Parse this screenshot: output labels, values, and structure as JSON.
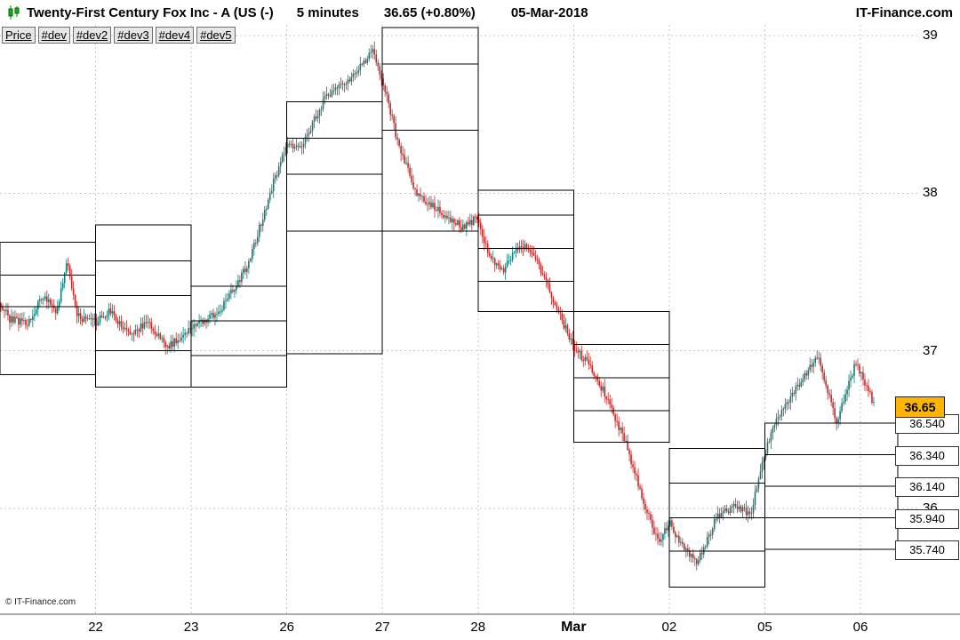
{
  "header": {
    "icon": "candlestick-icon",
    "title": "Twenty-First Century Fox Inc - A (US (-)",
    "timeframe": "5 minutes",
    "quote": "36.65 (+0.80%)",
    "date": "05-Mar-2018",
    "brand": "IT-Finance.com"
  },
  "toolbar": {
    "tabs": [
      "Price",
      "#dev",
      "#dev2",
      "#dev3",
      "#dev4",
      "#dev5"
    ]
  },
  "footer": {
    "copyright": "© IT-Finance.com"
  },
  "chart_data": {
    "type": "candlestick",
    "title": "Twenty-First Century Fox Inc - A, 5 minute candles with daily pivot/deviation step boxes",
    "x_labels": [
      {
        "text": "22",
        "bold": false
      },
      {
        "text": "23",
        "bold": false
      },
      {
        "text": "26",
        "bold": false
      },
      {
        "text": "27",
        "bold": false
      },
      {
        "text": "28",
        "bold": false
      },
      {
        "text": "Mar",
        "bold": true
      },
      {
        "text": "02",
        "bold": false
      },
      {
        "text": "05",
        "bold": false
      },
      {
        "text": "06",
        "bold": false
      }
    ],
    "y_ticks": [
      {
        "text": "39",
        "price": 39
      },
      {
        "text": "38",
        "price": 38
      },
      {
        "text": "37",
        "price": 37
      },
      {
        "text": "36",
        "price": 36
      }
    ],
    "y_range": [
      35.33,
      39.07
    ],
    "days_visible": 9.15,
    "grid": true,
    "current_price_label": {
      "text": "36.65",
      "price": 36.65
    },
    "pivot_labels": [
      {
        "text": "36.540",
        "price": 36.54
      },
      {
        "text": "36.340",
        "price": 36.34
      },
      {
        "text": "36.140",
        "price": 36.14
      },
      {
        "text": "35.940",
        "price": 35.94
      },
      {
        "text": "35.740",
        "price": 35.74
      }
    ],
    "pivot_boxes": [
      {
        "from": 0,
        "to": 1,
        "top": 37.69,
        "lines": [
          37.48,
          37.28
        ],
        "bottom": 36.85
      },
      {
        "from": 1,
        "to": 2,
        "top": 37.8,
        "lines": [
          37.57,
          37.35,
          37.0
        ],
        "bottom": 36.77
      },
      {
        "from": 2,
        "to": 3,
        "top": 37.41,
        "lines": [
          37.19,
          36.97
        ],
        "bottom": 36.77
      },
      {
        "from": 3,
        "to": 4,
        "top": 38.58,
        "lines": [
          38.35,
          38.12,
          37.76
        ],
        "bottom": 36.98
      },
      {
        "from": 4,
        "to": 5,
        "top": 39.05,
        "lines": [
          38.82,
          38.4
        ],
        "bottom": 37.76
      },
      {
        "from": 5,
        "to": 6,
        "top": 38.02,
        "lines": [
          37.86,
          37.65,
          37.44
        ],
        "bottom": 37.25
      },
      {
        "from": 6,
        "to": 7,
        "top": 37.25,
        "lines": [
          37.04,
          36.83,
          36.62
        ],
        "bottom": 36.42
      },
      {
        "from": 7,
        "to": 8,
        "top": 36.38,
        "lines": [
          36.16,
          35.94,
          35.73
        ],
        "bottom": 35.5
      },
      {
        "from": 8,
        "to": 9.4,
        "top": 36.54,
        "lines": [
          36.34,
          36.14,
          35.94
        ],
        "bottom": 35.74
      }
    ],
    "price_waypoints": [
      [
        0.0,
        37.3
      ],
      [
        0.1,
        37.2
      ],
      [
        0.3,
        37.18
      ],
      [
        0.45,
        37.35
      ],
      [
        0.6,
        37.25
      ],
      [
        0.7,
        37.58
      ],
      [
        0.8,
        37.22
      ],
      [
        1.0,
        37.18
      ],
      [
        1.15,
        37.25
      ],
      [
        1.35,
        37.1
      ],
      [
        1.55,
        37.18
      ],
      [
        1.75,
        37.02
      ],
      [
        2.0,
        37.15
      ],
      [
        2.3,
        37.25
      ],
      [
        2.6,
        37.55
      ],
      [
        2.85,
        38.05
      ],
      [
        3.0,
        38.3
      ],
      [
        3.15,
        38.3
      ],
      [
        3.4,
        38.6
      ],
      [
        3.7,
        38.75
      ],
      [
        3.9,
        38.9
      ],
      [
        4.0,
        38.72
      ],
      [
        4.15,
        38.35
      ],
      [
        4.35,
        38.0
      ],
      [
        4.6,
        37.88
      ],
      [
        4.85,
        37.78
      ],
      [
        5.0,
        37.85
      ],
      [
        5.1,
        37.62
      ],
      [
        5.25,
        37.5
      ],
      [
        5.45,
        37.68
      ],
      [
        5.6,
        37.6
      ],
      [
        5.8,
        37.3
      ],
      [
        6.0,
        37.02
      ],
      [
        6.15,
        36.92
      ],
      [
        6.35,
        36.7
      ],
      [
        6.55,
        36.4
      ],
      [
        6.75,
        36.0
      ],
      [
        6.9,
        35.78
      ],
      [
        7.0,
        35.92
      ],
      [
        7.1,
        35.78
      ],
      [
        7.3,
        35.66
      ],
      [
        7.5,
        35.95
      ],
      [
        7.7,
        36.02
      ],
      [
        7.85,
        35.96
      ],
      [
        8.0,
        36.35
      ],
      [
        8.15,
        36.6
      ],
      [
        8.35,
        36.78
      ],
      [
        8.55,
        36.98
      ],
      [
        8.75,
        36.55
      ],
      [
        8.95,
        36.92
      ],
      [
        9.05,
        36.8
      ],
      [
        9.15,
        36.65
      ]
    ],
    "colors": {
      "up": "#0e7c74",
      "down": "#c62828",
      "box": "#000000",
      "grid": "#c8c8c8",
      "current_label_bg": "#ffb400"
    }
  }
}
